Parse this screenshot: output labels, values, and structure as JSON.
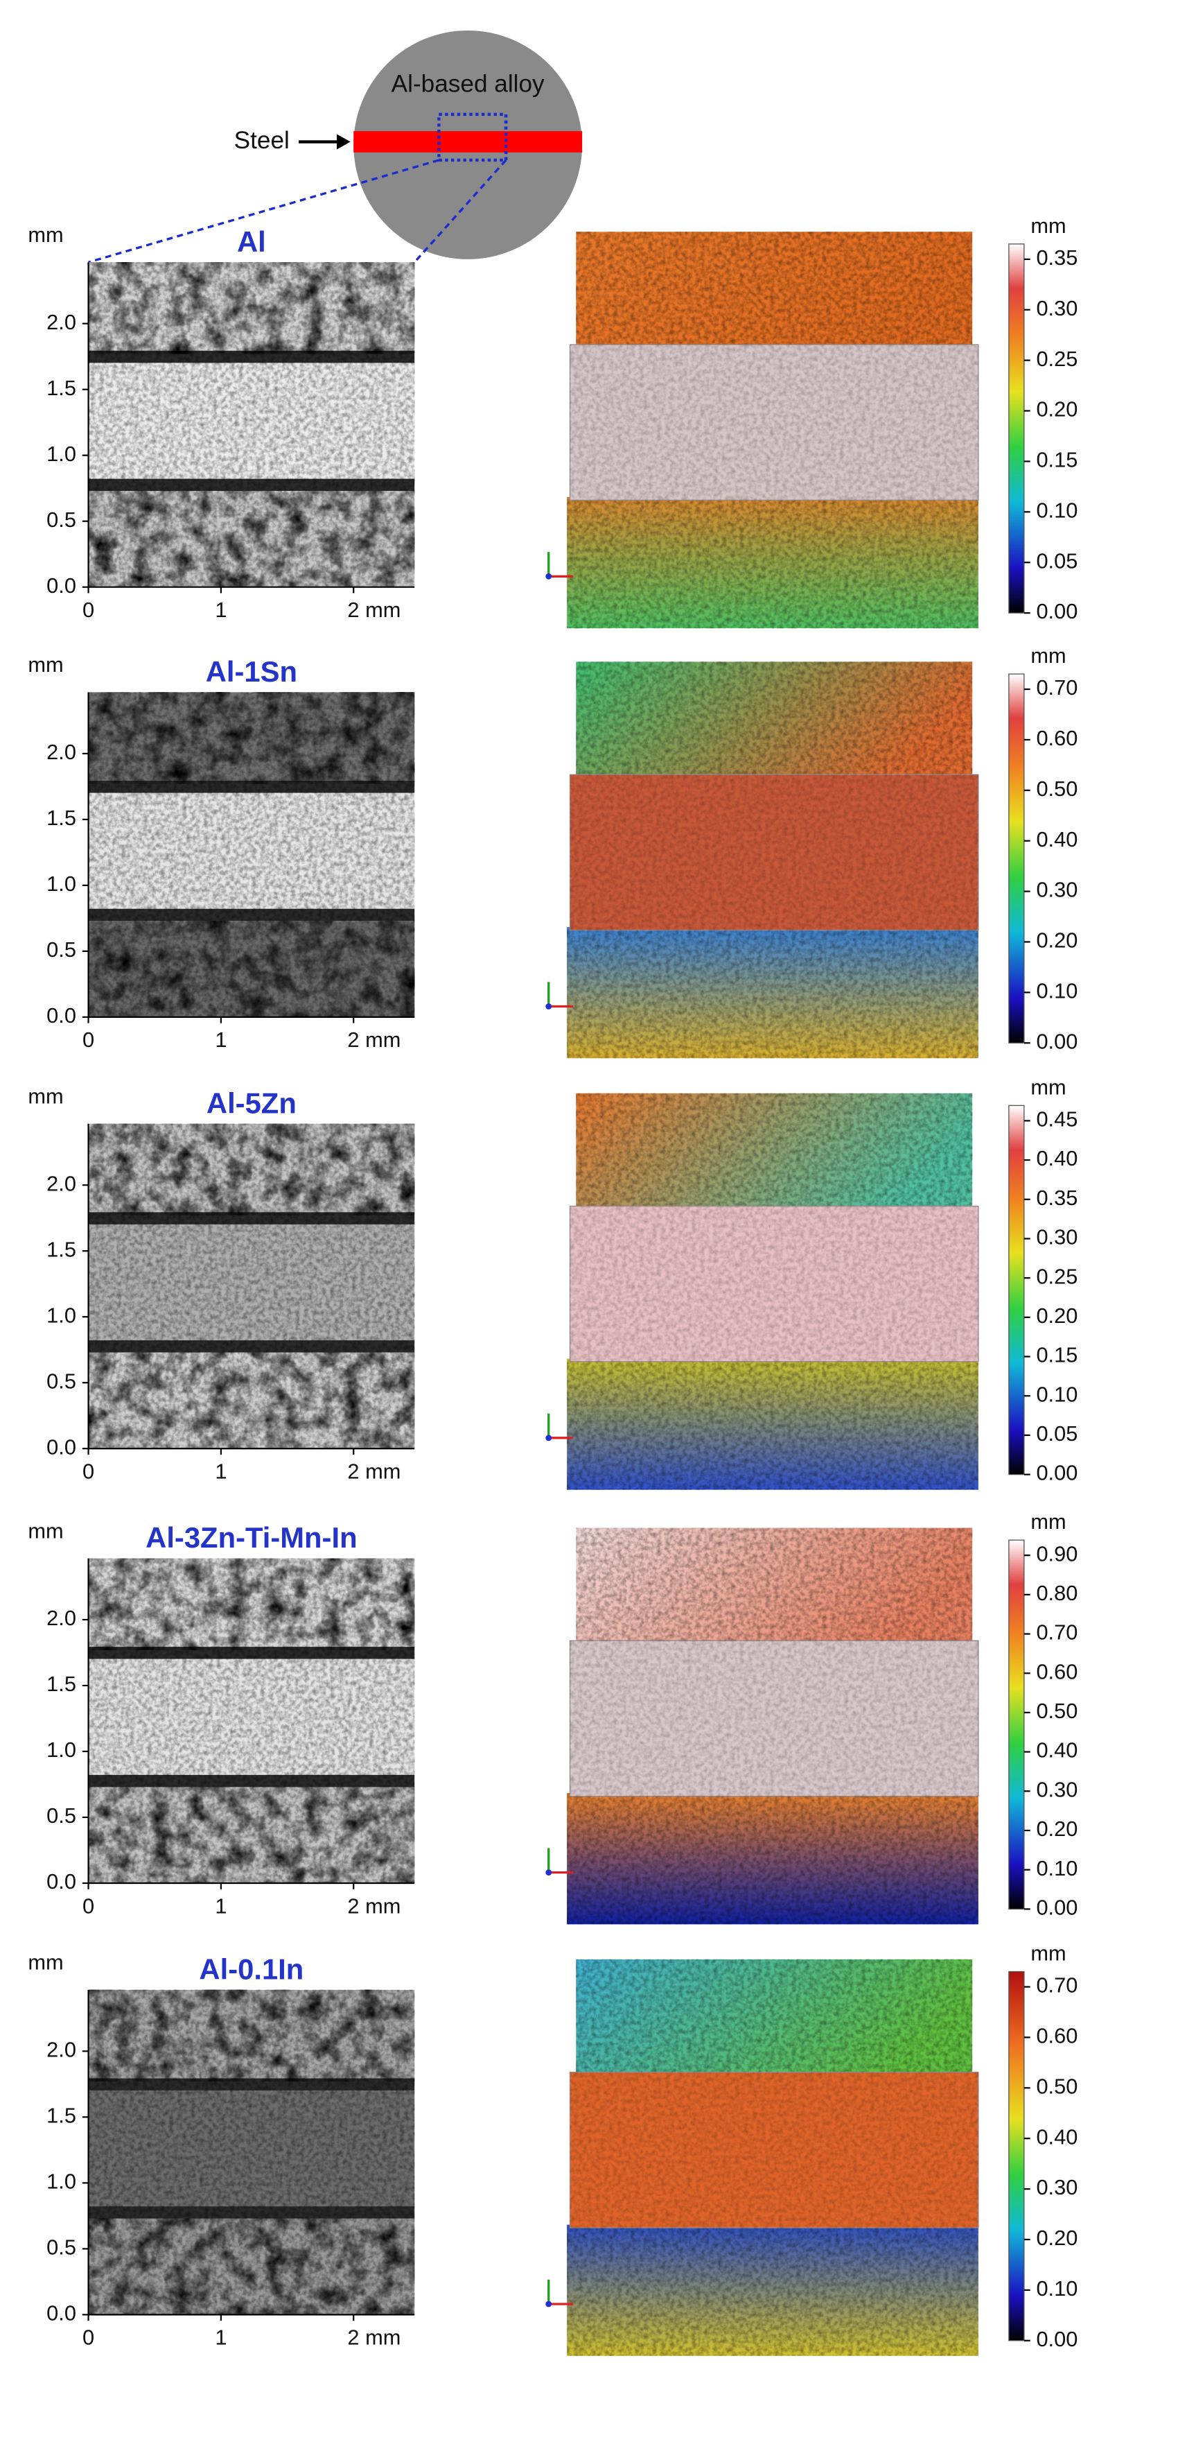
{
  "schematic": {
    "alloy_label": "Al-based alloy",
    "steel_label": "Steel"
  },
  "panels": [
    {
      "title": "Al",
      "y_unit": "mm",
      "yticks": [
        "0.0",
        "0.5",
        "1.0",
        "1.5",
        "2.0"
      ],
      "xticks": [
        "0",
        "1",
        "2 mm"
      ],
      "colorbar_unit": "mm",
      "colorbar_ticks": [
        "0.00",
        "0.05",
        "0.10",
        "0.15",
        "0.20",
        "0.25",
        "0.30",
        "0.35"
      ]
    },
    {
      "title": "Al-1Sn",
      "y_unit": "mm",
      "yticks": [
        "0.0",
        "0.5",
        "1.0",
        "1.5",
        "2.0"
      ],
      "xticks": [
        "0",
        "1",
        "2 mm"
      ],
      "colorbar_unit": "mm",
      "colorbar_ticks": [
        "0.00",
        "0.10",
        "0.20",
        "0.30",
        "0.40",
        "0.50",
        "0.60",
        "0.70"
      ]
    },
    {
      "title": "Al-5Zn",
      "y_unit": "mm",
      "yticks": [
        "0.0",
        "0.5",
        "1.0",
        "1.5",
        "2.0"
      ],
      "xticks": [
        "0",
        "1",
        "2 mm"
      ],
      "colorbar_unit": "mm",
      "colorbar_ticks": [
        "0.00",
        "0.05",
        "0.10",
        "0.15",
        "0.20",
        "0.25",
        "0.30",
        "0.35",
        "0.40",
        "0.45"
      ]
    },
    {
      "title": "Al-3Zn-Ti-Mn-In",
      "y_unit": "mm",
      "yticks": [
        "0.0",
        "0.5",
        "1.0",
        "1.5",
        "2.0"
      ],
      "xticks": [
        "0",
        "1",
        "2 mm"
      ],
      "colorbar_unit": "mm",
      "colorbar_ticks": [
        "0.00",
        "0.10",
        "0.20",
        "0.30",
        "0.40",
        "0.50",
        "0.60",
        "0.70",
        "0.80",
        "0.90"
      ]
    },
    {
      "title": "Al-0.1In",
      "y_unit": "mm",
      "yticks": [
        "0.0",
        "0.5",
        "1.0",
        "1.5",
        "2.0"
      ],
      "xticks": [
        "0",
        "1",
        "2 mm"
      ],
      "colorbar_unit": "mm",
      "colorbar_ticks": [
        "0.00",
        "0.10",
        "0.20",
        "0.30",
        "0.40",
        "0.50",
        "0.60",
        "0.70"
      ]
    }
  ]
}
